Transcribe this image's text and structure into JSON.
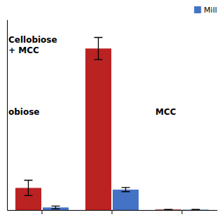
{
  "chart_data": {
    "type": "bar",
    "categories": [
      null,
      null,
      null
    ],
    "series": [
      {
        "color": "#bb2222",
        "values": [
          0.13,
          0.95,
          0.003
        ],
        "errors": [
          0.045,
          0.065,
          0.001
        ]
      },
      {
        "name": "Mill",
        "color": "#4472c4",
        "values": [
          0.015,
          0.12,
          0.002
        ],
        "errors": [
          0.008,
          0.012,
          0.001
        ]
      }
    ],
    "ylim": [
      0,
      1.12
    ],
    "annotations": [
      "obiose",
      "Cellobiose\n+ MCC",
      "MCC"
    ],
    "tick_labels": false,
    "legend": "top-right"
  }
}
